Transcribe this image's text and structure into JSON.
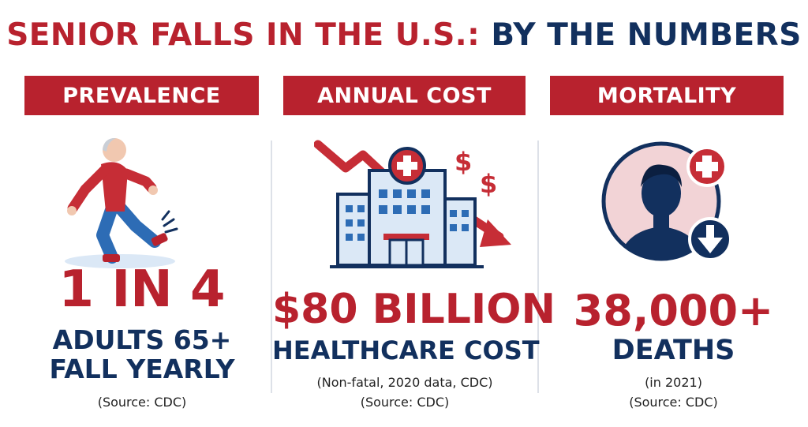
{
  "title": {
    "part_red": "SENIOR FALLS IN THE U.S.:",
    "part_blue": "BY THE NUMBERS"
  },
  "colors": {
    "accent_red": "#b8222e",
    "navy": "#12305e",
    "light_blue": "#dbe8f6",
    "pink": "#f2d3d6"
  },
  "panels": [
    {
      "header": "PREVALENCE",
      "icon": "falling-senior-icon",
      "stat": "1 IN 4",
      "sub_line1": "ADULTS 65+",
      "sub_line2": "FALL YEARLY",
      "source": "(Source: CDC)"
    },
    {
      "header": "ANNUAL COST",
      "icon": "hospital-declining-icon",
      "icon_symbols": [
        "$",
        "$"
      ],
      "stat": "$80 BILLION",
      "sub_line1": "HEALTHCARE COST",
      "detail": "(Non-fatal, 2020 data, CDC)",
      "source": "(Source: CDC)"
    },
    {
      "header": "MORTALITY",
      "icon": "person-down-arrow-icon",
      "stat": "38,000+",
      "sub_line1": "DEATHS",
      "detail": "(in 2021)",
      "source": "(Source: CDC)"
    }
  ]
}
